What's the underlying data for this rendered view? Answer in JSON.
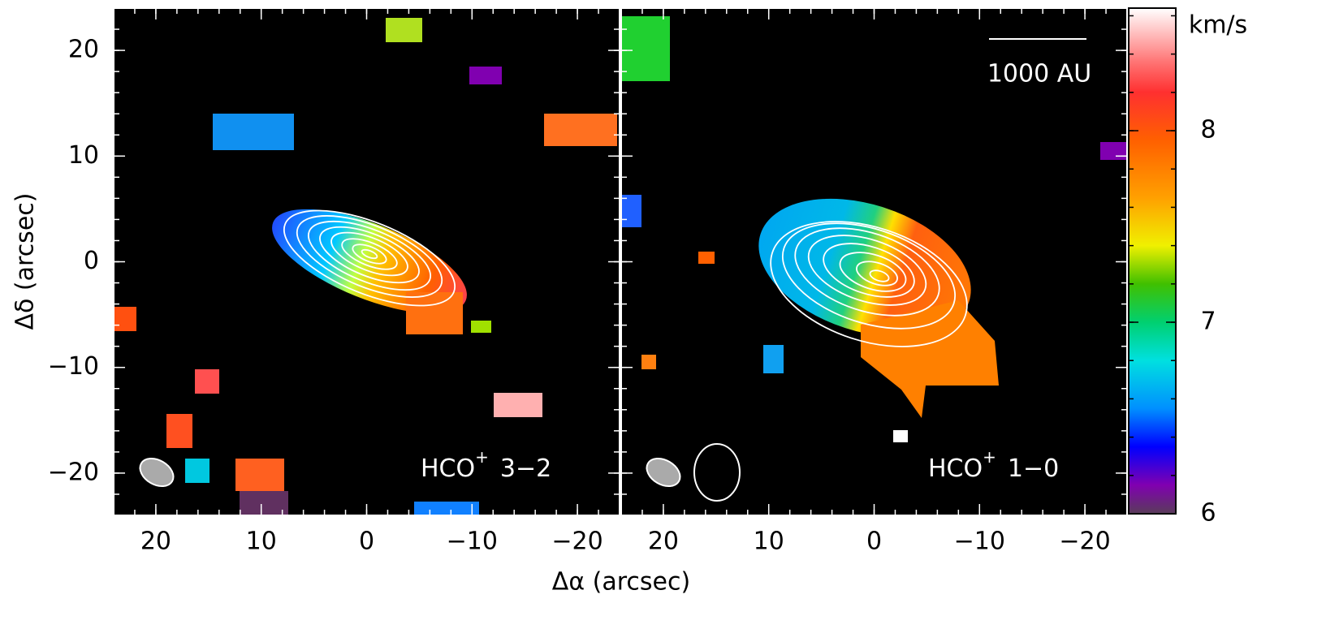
{
  "chart_data": [
    {
      "type": "map",
      "xlabel": "Δα (arcsec)",
      "ylabel": "Δδ (arcsec)",
      "annotation": [
        "HCO",
        "+",
        "3−2"
      ],
      "xlim": [
        24,
        -24
      ],
      "ylim": [
        -24,
        24
      ],
      "minor_step": 2,
      "xticks": [
        20,
        10,
        0,
        {
          "value": -10,
          "label": "−10"
        },
        {
          "value": -20,
          "label": "−20"
        }
      ],
      "yticks": [
        {
          "value": -20,
          "label": "−20"
        },
        {
          "value": -10,
          "label": "−10"
        },
        0,
        10,
        20
      ]
    },
    {
      "type": "map",
      "annotation": [
        "HCO",
        "+",
        "1−0"
      ],
      "scalebar_label": "1000 AU",
      "xlim": [
        24,
        -24
      ],
      "ylim": [
        -24,
        24
      ],
      "minor_step": 2,
      "xticks": [
        20,
        10,
        0,
        {
          "value": -10,
          "label": "−10"
        },
        {
          "value": -20,
          "label": "−20"
        }
      ],
      "yticks": [
        {
          "value": -20,
          "label": "−20"
        },
        {
          "value": -10,
          "label": "−10"
        },
        0,
        10,
        20
      ]
    },
    {
      "type": "colorbar",
      "title": "km/s",
      "ylim": [
        6,
        8.64
      ],
      "yticks": [
        6,
        7,
        8
      ],
      "minor_step": 0.2,
      "color_stops": [
        {
          "value": 6.0,
          "color": "#5a3c5a"
        },
        {
          "value": 6.15,
          "color": "#8000b0"
        },
        {
          "value": 6.35,
          "color": "#0000ff"
        },
        {
          "value": 6.55,
          "color": "#0090ff"
        },
        {
          "value": 6.8,
          "color": "#00e0e0"
        },
        {
          "value": 7.0,
          "color": "#00d070"
        },
        {
          "value": 7.2,
          "color": "#40c000"
        },
        {
          "value": 7.4,
          "color": "#f0f000"
        },
        {
          "value": 7.65,
          "color": "#ffa000"
        },
        {
          "value": 7.95,
          "color": "#ff6000"
        },
        {
          "value": 8.2,
          "color": "#ff3030"
        },
        {
          "value": 8.35,
          "color": "#ff7070"
        },
        {
          "value": 8.64,
          "color": "#ffffff"
        }
      ]
    }
  ]
}
